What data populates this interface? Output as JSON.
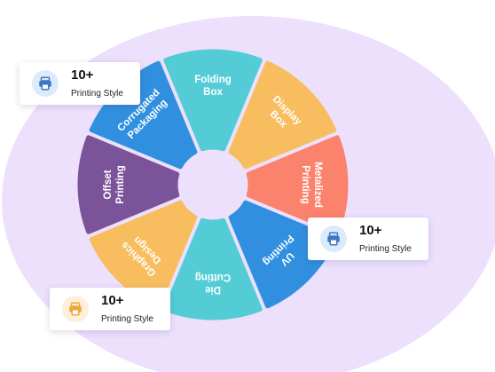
{
  "wheel": {
    "segments": [
      {
        "id": "folding-box",
        "lines": [
          "Folding",
          "Box"
        ],
        "color": "#54ccd6"
      },
      {
        "id": "display-box",
        "lines": [
          "Display",
          "Box"
        ],
        "color": "#f8bd5e"
      },
      {
        "id": "metalized-printing",
        "lines": [
          "Metalized",
          "Printing"
        ],
        "color": "#fb826c"
      },
      {
        "id": "uv-printing",
        "lines": [
          "UV",
          "Printing"
        ],
        "color": "#3090df"
      },
      {
        "id": "die-cutting",
        "lines": [
          "Die",
          "Cutting"
        ],
        "color": "#54ccd6"
      },
      {
        "id": "graphics-design",
        "lines": [
          "Graphics",
          "Design"
        ],
        "color": "#f8bd5e"
      },
      {
        "id": "offset-printing",
        "lines": [
          "Offset",
          "Printing"
        ],
        "color": "#7b5399"
      },
      {
        "id": "corrugated-packaging",
        "lines": [
          "Corrugated",
          "Packaging"
        ],
        "color": "#3090df"
      }
    ],
    "background_color": "#ece0fd"
  },
  "cards": [
    {
      "value": "10+",
      "label": "Printing Style",
      "icon": "printer-icon",
      "icon_bg": "#dcebfa",
      "icon_color": "#3d78c5"
    },
    {
      "value": "10+",
      "label": "Printing Style",
      "icon": "printer-icon",
      "icon_bg": "#dcebfa",
      "icon_color": "#3d78c5"
    },
    {
      "value": "10+",
      "label": "Printing Style",
      "icon": "printer-icon",
      "icon_bg": "#fdefd9",
      "icon_color": "#f2a637"
    }
  ]
}
